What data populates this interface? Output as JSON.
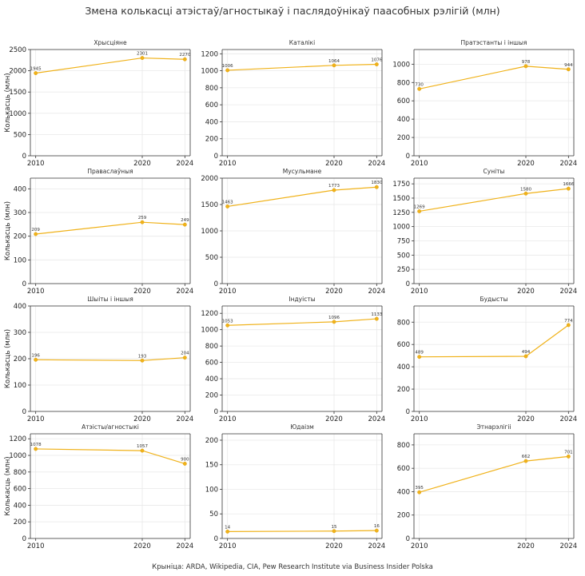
{
  "title": "Змена колькасці атэістаў/агностыкаў і паслядоўнікаў паасобных рэлігій (млн)",
  "footnote": "Крыніца: ARDA, Wikipedia, CIA, Pew Research Institute via Business Insider Polska",
  "colors": {
    "series": "#f0b21a",
    "grid": "#e9e9e9",
    "axis": "#333333"
  },
  "chart_data": [
    {
      "type": "line",
      "title": "Хрысціяне",
      "ylabel": "Колькасць (млн)",
      "x": [
        2010,
        2020,
        2024
      ],
      "values": [
        1945,
        2301,
        2270
      ],
      "ylim": [
        0,
        2500
      ],
      "yticks": [
        0,
        500,
        1000,
        1500,
        2000,
        2500
      ],
      "xticks": [
        2010,
        2020,
        2024
      ],
      "grid": true
    },
    {
      "type": "line",
      "title": "Каталікі",
      "ylabel": "",
      "x": [
        2010,
        2020,
        2024
      ],
      "values": [
        1006,
        1064,
        1076
      ],
      "ylim": [
        0,
        1250
      ],
      "yticks": [
        0,
        200,
        400,
        600,
        800,
        1000,
        1200
      ],
      "xticks": [
        2010,
        2020,
        2024
      ],
      "grid": true
    },
    {
      "type": "line",
      "title": "Пратэстанты і іншыя",
      "ylabel": "",
      "x": [
        2010,
        2020,
        2024
      ],
      "values": [
        730,
        978,
        944
      ],
      "ylim": [
        0,
        1160
      ],
      "yticks": [
        0,
        200,
        400,
        600,
        800,
        1000
      ],
      "xticks": [
        2010,
        2020,
        2024
      ],
      "grid": true
    },
    {
      "type": "line",
      "title": "Праваслаўныя",
      "ylabel": "Колькасць (млн)",
      "x": [
        2010,
        2020,
        2024
      ],
      "values": [
        209,
        259,
        249
      ],
      "ylim": [
        0,
        445
      ],
      "yticks": [
        0,
        100,
        200,
        300,
        400
      ],
      "xticks": [
        2010,
        2020,
        2024
      ],
      "grid": true
    },
    {
      "type": "line",
      "title": "Мусульмане",
      "ylabel": "",
      "x": [
        2010,
        2020,
        2024
      ],
      "values": [
        1463,
        1773,
        1830
      ],
      "ylim": [
        0,
        2000
      ],
      "yticks": [
        0,
        500,
        1000,
        1500,
        2000
      ],
      "xticks": [
        2010,
        2020,
        2024
      ],
      "grid": true
    },
    {
      "type": "line",
      "title": "Суніты",
      "ylabel": "",
      "x": [
        2010,
        2020,
        2024
      ],
      "values": [
        1269,
        1580,
        1666
      ],
      "ylim": [
        0,
        1850
      ],
      "yticks": [
        0,
        250,
        500,
        750,
        1000,
        1250,
        1500,
        1750
      ],
      "xticks": [
        2010,
        2020,
        2024
      ],
      "grid": true
    },
    {
      "type": "line",
      "title": "Шыіты і іншыя",
      "ylabel": "Колькасць (млн)",
      "x": [
        2010,
        2020,
        2024
      ],
      "values": [
        196,
        193,
        204
      ],
      "ylim": [
        0,
        400
      ],
      "yticks": [
        0,
        100,
        200,
        300,
        400
      ],
      "xticks": [
        2010,
        2020,
        2024
      ],
      "grid": true
    },
    {
      "type": "line",
      "title": "Індуісты",
      "ylabel": "",
      "x": [
        2010,
        2020,
        2024
      ],
      "values": [
        1053,
        1096,
        1133
      ],
      "ylim": [
        0,
        1290
      ],
      "yticks": [
        0,
        200,
        400,
        600,
        800,
        1000,
        1200
      ],
      "xticks": [
        2010,
        2020,
        2024
      ],
      "grid": true
    },
    {
      "type": "line",
      "title": "Будысты",
      "ylabel": "",
      "x": [
        2010,
        2020,
        2024
      ],
      "values": [
        489,
        494,
        774
      ],
      "ylim": [
        0,
        945
      ],
      "yticks": [
        0,
        200,
        400,
        600,
        800
      ],
      "xticks": [
        2010,
        2020,
        2024
      ],
      "grid": true
    },
    {
      "type": "line",
      "title": "Атэісты/агностыкі",
      "ylabel": "Колькасць (млн)",
      "x": [
        2010,
        2020,
        2024
      ],
      "values": [
        1078,
        1057,
        900
      ],
      "ylim": [
        0,
        1260
      ],
      "yticks": [
        0,
        200,
        400,
        600,
        800,
        1000,
        1200
      ],
      "xticks": [
        2010,
        2020,
        2024
      ],
      "grid": true
    },
    {
      "type": "line",
      "title": "Юдаізм",
      "ylabel": "",
      "x": [
        2010,
        2020,
        2024
      ],
      "values": [
        14,
        15,
        16
      ],
      "ylim": [
        0,
        213
      ],
      "yticks": [
        0,
        50,
        100,
        150,
        200
      ],
      "xticks": [
        2010,
        2020,
        2024
      ],
      "grid": true
    },
    {
      "type": "line",
      "title": "Этнарэлігіі",
      "ylabel": "",
      "x": [
        2010,
        2020,
        2024
      ],
      "values": [
        395,
        662,
        701
      ],
      "ylim": [
        0,
        895
      ],
      "yticks": [
        0,
        200,
        400,
        600,
        800
      ],
      "xticks": [
        2010,
        2020,
        2024
      ],
      "grid": true
    }
  ]
}
